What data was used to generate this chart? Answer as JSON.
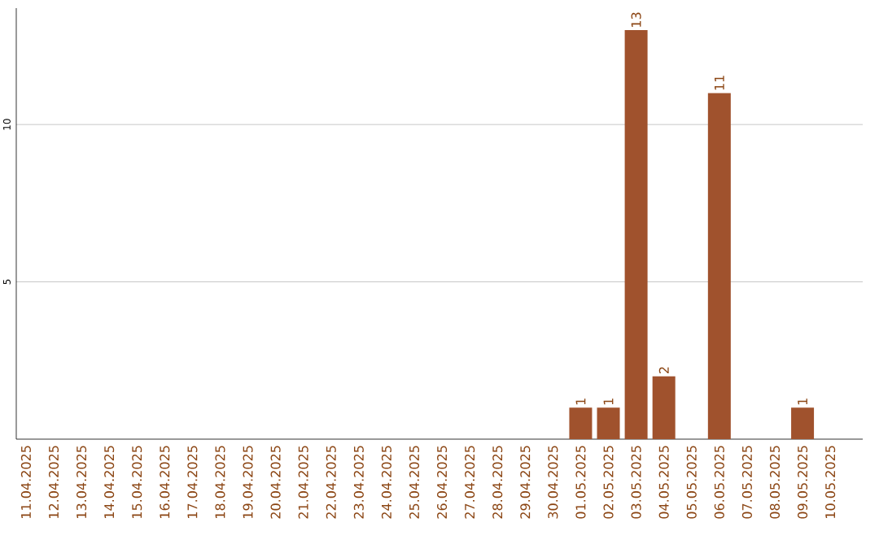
{
  "chart_data": {
    "type": "bar",
    "categories": [
      "11.04.2025",
      "12.04.2025",
      "13.04.2025",
      "14.04.2025",
      "15.04.2025",
      "16.04.2025",
      "17.04.2025",
      "18.04.2025",
      "19.04.2025",
      "20.04.2025",
      "21.04.2025",
      "22.04.2025",
      "23.04.2025",
      "24.04.2025",
      "25.04.2025",
      "26.04.2025",
      "27.04.2025",
      "28.04.2025",
      "29.04.2025",
      "30.04.2025",
      "01.05.2025",
      "02.05.2025",
      "03.05.2025",
      "04.05.2025",
      "05.05.2025",
      "06.05.2025",
      "07.05.2025",
      "08.05.2025",
      "09.05.2025",
      "10.05.2025"
    ],
    "values": [
      0,
      0,
      0,
      0,
      0,
      0,
      0,
      0,
      0,
      0,
      0,
      0,
      0,
      0,
      0,
      0,
      0,
      0,
      0,
      0,
      1,
      1,
      13,
      2,
      0,
      11,
      0,
      0,
      1,
      0
    ],
    "value_labels": [
      null,
      null,
      null,
      null,
      null,
      null,
      null,
      null,
      null,
      null,
      null,
      null,
      null,
      null,
      null,
      null,
      null,
      null,
      null,
      null,
      "1",
      "1",
      "13",
      "2",
      null,
      "11",
      null,
      null,
      "1",
      null
    ],
    "color": "#a0522d",
    "ylim": [
      0,
      13.7
    ],
    "yticks": [
      5,
      10
    ],
    "grid": "y"
  }
}
